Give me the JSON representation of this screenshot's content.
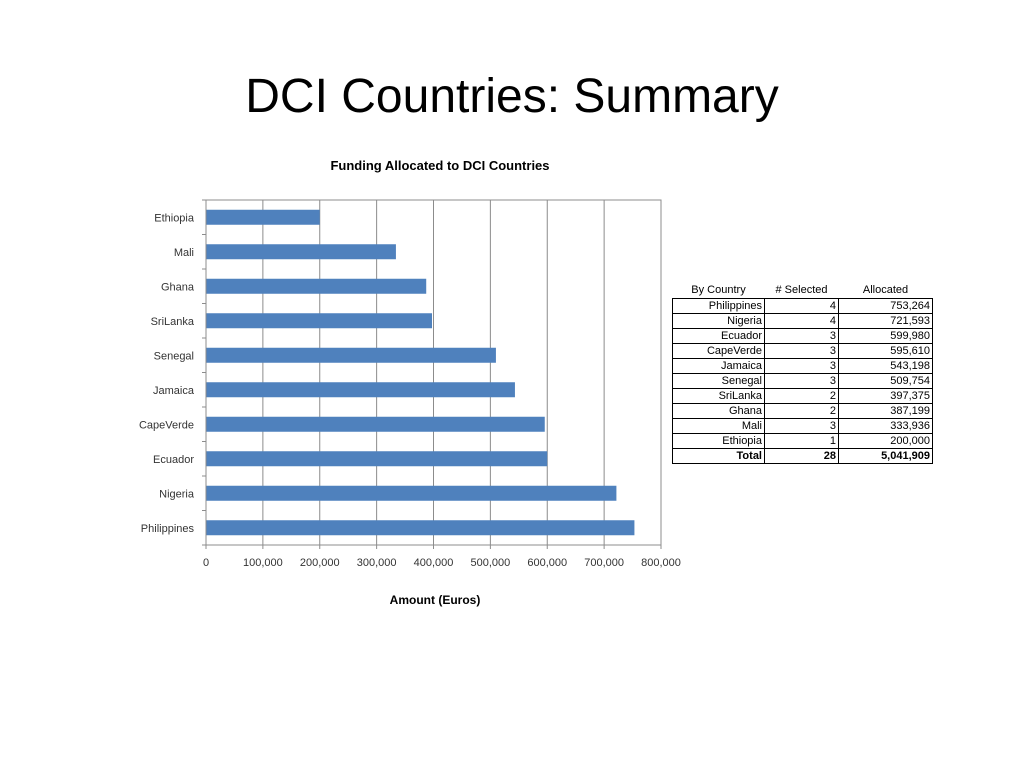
{
  "slide": {
    "title": "DCI Countries: Summary"
  },
  "chart_data": {
    "type": "bar",
    "orientation": "horizontal",
    "title": "Funding Allocated to DCI Countries",
    "xlabel": "Amount (Euros)",
    "ylabel": "",
    "categories": [
      "Ethiopia",
      "Mali",
      "Ghana",
      "SriLanka",
      "Senegal",
      "Jamaica",
      "CapeVerde",
      "Ecuador",
      "Nigeria",
      "Philippines"
    ],
    "values": [
      200000,
      333936,
      387199,
      397375,
      509754,
      543198,
      595610,
      599980,
      721593,
      753264
    ],
    "xlim": [
      0,
      800000
    ],
    "ticks": [
      0,
      100000,
      200000,
      300000,
      400000,
      500000,
      600000,
      700000,
      800000
    ],
    "tick_labels": [
      "0",
      "100,000",
      "200,000",
      "300,000",
      "400,000",
      "500,000",
      "600,000",
      "700,000",
      "800,000"
    ],
    "grid": "vertical",
    "legend": "none",
    "bar_color": "#4f81bd"
  },
  "table": {
    "headers": [
      "By Country",
      "# Selected",
      "Allocated"
    ],
    "rows": [
      [
        "Philippines",
        "4",
        "753,264"
      ],
      [
        "Nigeria",
        "4",
        "721,593"
      ],
      [
        "Ecuador",
        "3",
        "599,980"
      ],
      [
        "CapeVerde",
        "3",
        "595,610"
      ],
      [
        "Jamaica",
        "3",
        "543,198"
      ],
      [
        "Senegal",
        "3",
        "509,754"
      ],
      [
        "SriLanka",
        "2",
        "397,375"
      ],
      [
        "Ghana",
        "2",
        "387,199"
      ],
      [
        "Mali",
        "3",
        "333,936"
      ],
      [
        "Ethiopia",
        "1",
        "200,000"
      ]
    ],
    "total": [
      "Total",
      "28",
      "5,041,909"
    ]
  }
}
